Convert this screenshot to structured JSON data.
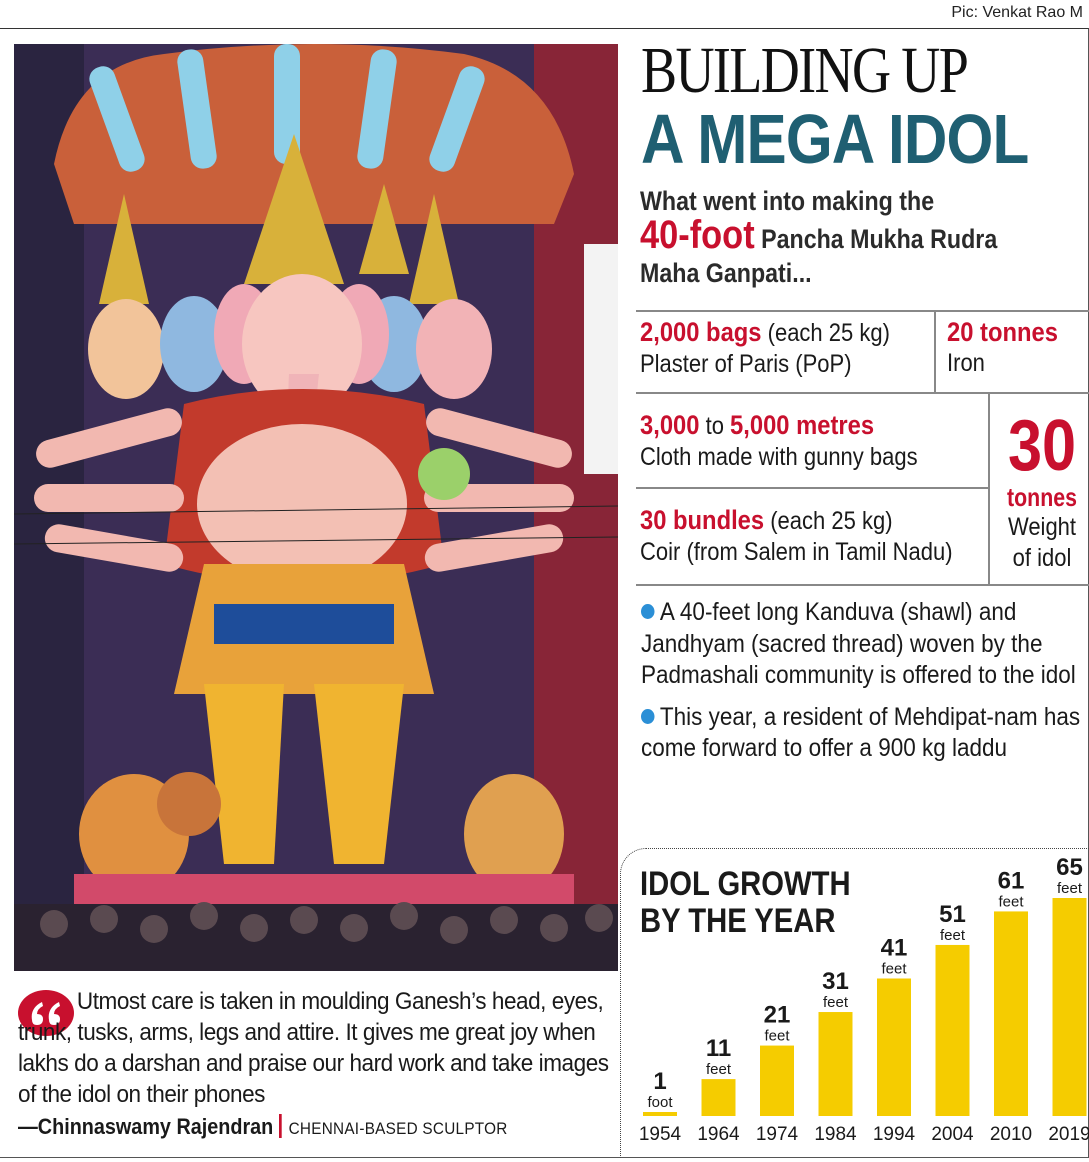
{
  "credit": "Pic: Venkat Rao M",
  "headline": {
    "line1": "BUILDING UP",
    "line2": "A MEGA IDOL"
  },
  "intro": {
    "pre": "What went into making the",
    "highlight": "40-foot",
    "rest_line2": " Pancha Mukha Rudra",
    "line3": "Maha Ganpati..."
  },
  "stats": {
    "pop": {
      "num": "2,000 bags",
      "detail": " (each 25 kg)",
      "label": "Plaster of Paris (PoP)"
    },
    "iron": {
      "num": "20 tonnes",
      "label": "Iron"
    },
    "cloth": {
      "num1": "3,000",
      "mid": " to ",
      "num2": "5,000 metres",
      "label": "Cloth made with gunny bags"
    },
    "coir": {
      "num": "30 bundles",
      "detail": " (each 25 kg)",
      "label": "Coir (from Salem in Tamil Nadu)"
    },
    "weight": {
      "num": "30",
      "unit": "tonnes",
      "label1": "Weight",
      "label2": "of idol"
    }
  },
  "bullets": [
    "A 40-feet long Kanduva (shawl) and Jandhyam (sacred thread) woven by the Padmashali community is offered to the idol",
    "This year, a resident of Mehdipat-nam has come forward to offer a 900 kg laddu"
  ],
  "quote": {
    "text": "Utmost care is taken in moulding Ganesh’s head, eyes, trunk, tusks, arms, legs and attire. It gives me great joy when lakhs do a darshan and praise our hard work and take images of the idol on their phones",
    "author": "—Chinnaswamy Rajendran",
    "role": "CHENNAI-BASED SCULPTOR"
  },
  "colors": {
    "accent_red": "#c8102e",
    "headline_teal": "#1f5f72",
    "bar_yellow": "#f5cc00",
    "bullet_blue": "#2b8fd6"
  },
  "chart_data": {
    "type": "bar",
    "title": "IDOL GROWTH BY THE YEAR",
    "title_lines": [
      "IDOL GROWTH",
      "BY THE YEAR"
    ],
    "categories": [
      "1954",
      "1964",
      "1974",
      "1984",
      "1994",
      "2004",
      "2010",
      "2019"
    ],
    "values": [
      1,
      11,
      21,
      31,
      41,
      51,
      61,
      65
    ],
    "units": [
      "foot",
      "feet",
      "feet",
      "feet",
      "feet",
      "feet",
      "feet",
      "feet"
    ],
    "ylim": [
      0,
      65
    ],
    "grid": false,
    "legend": "none"
  }
}
